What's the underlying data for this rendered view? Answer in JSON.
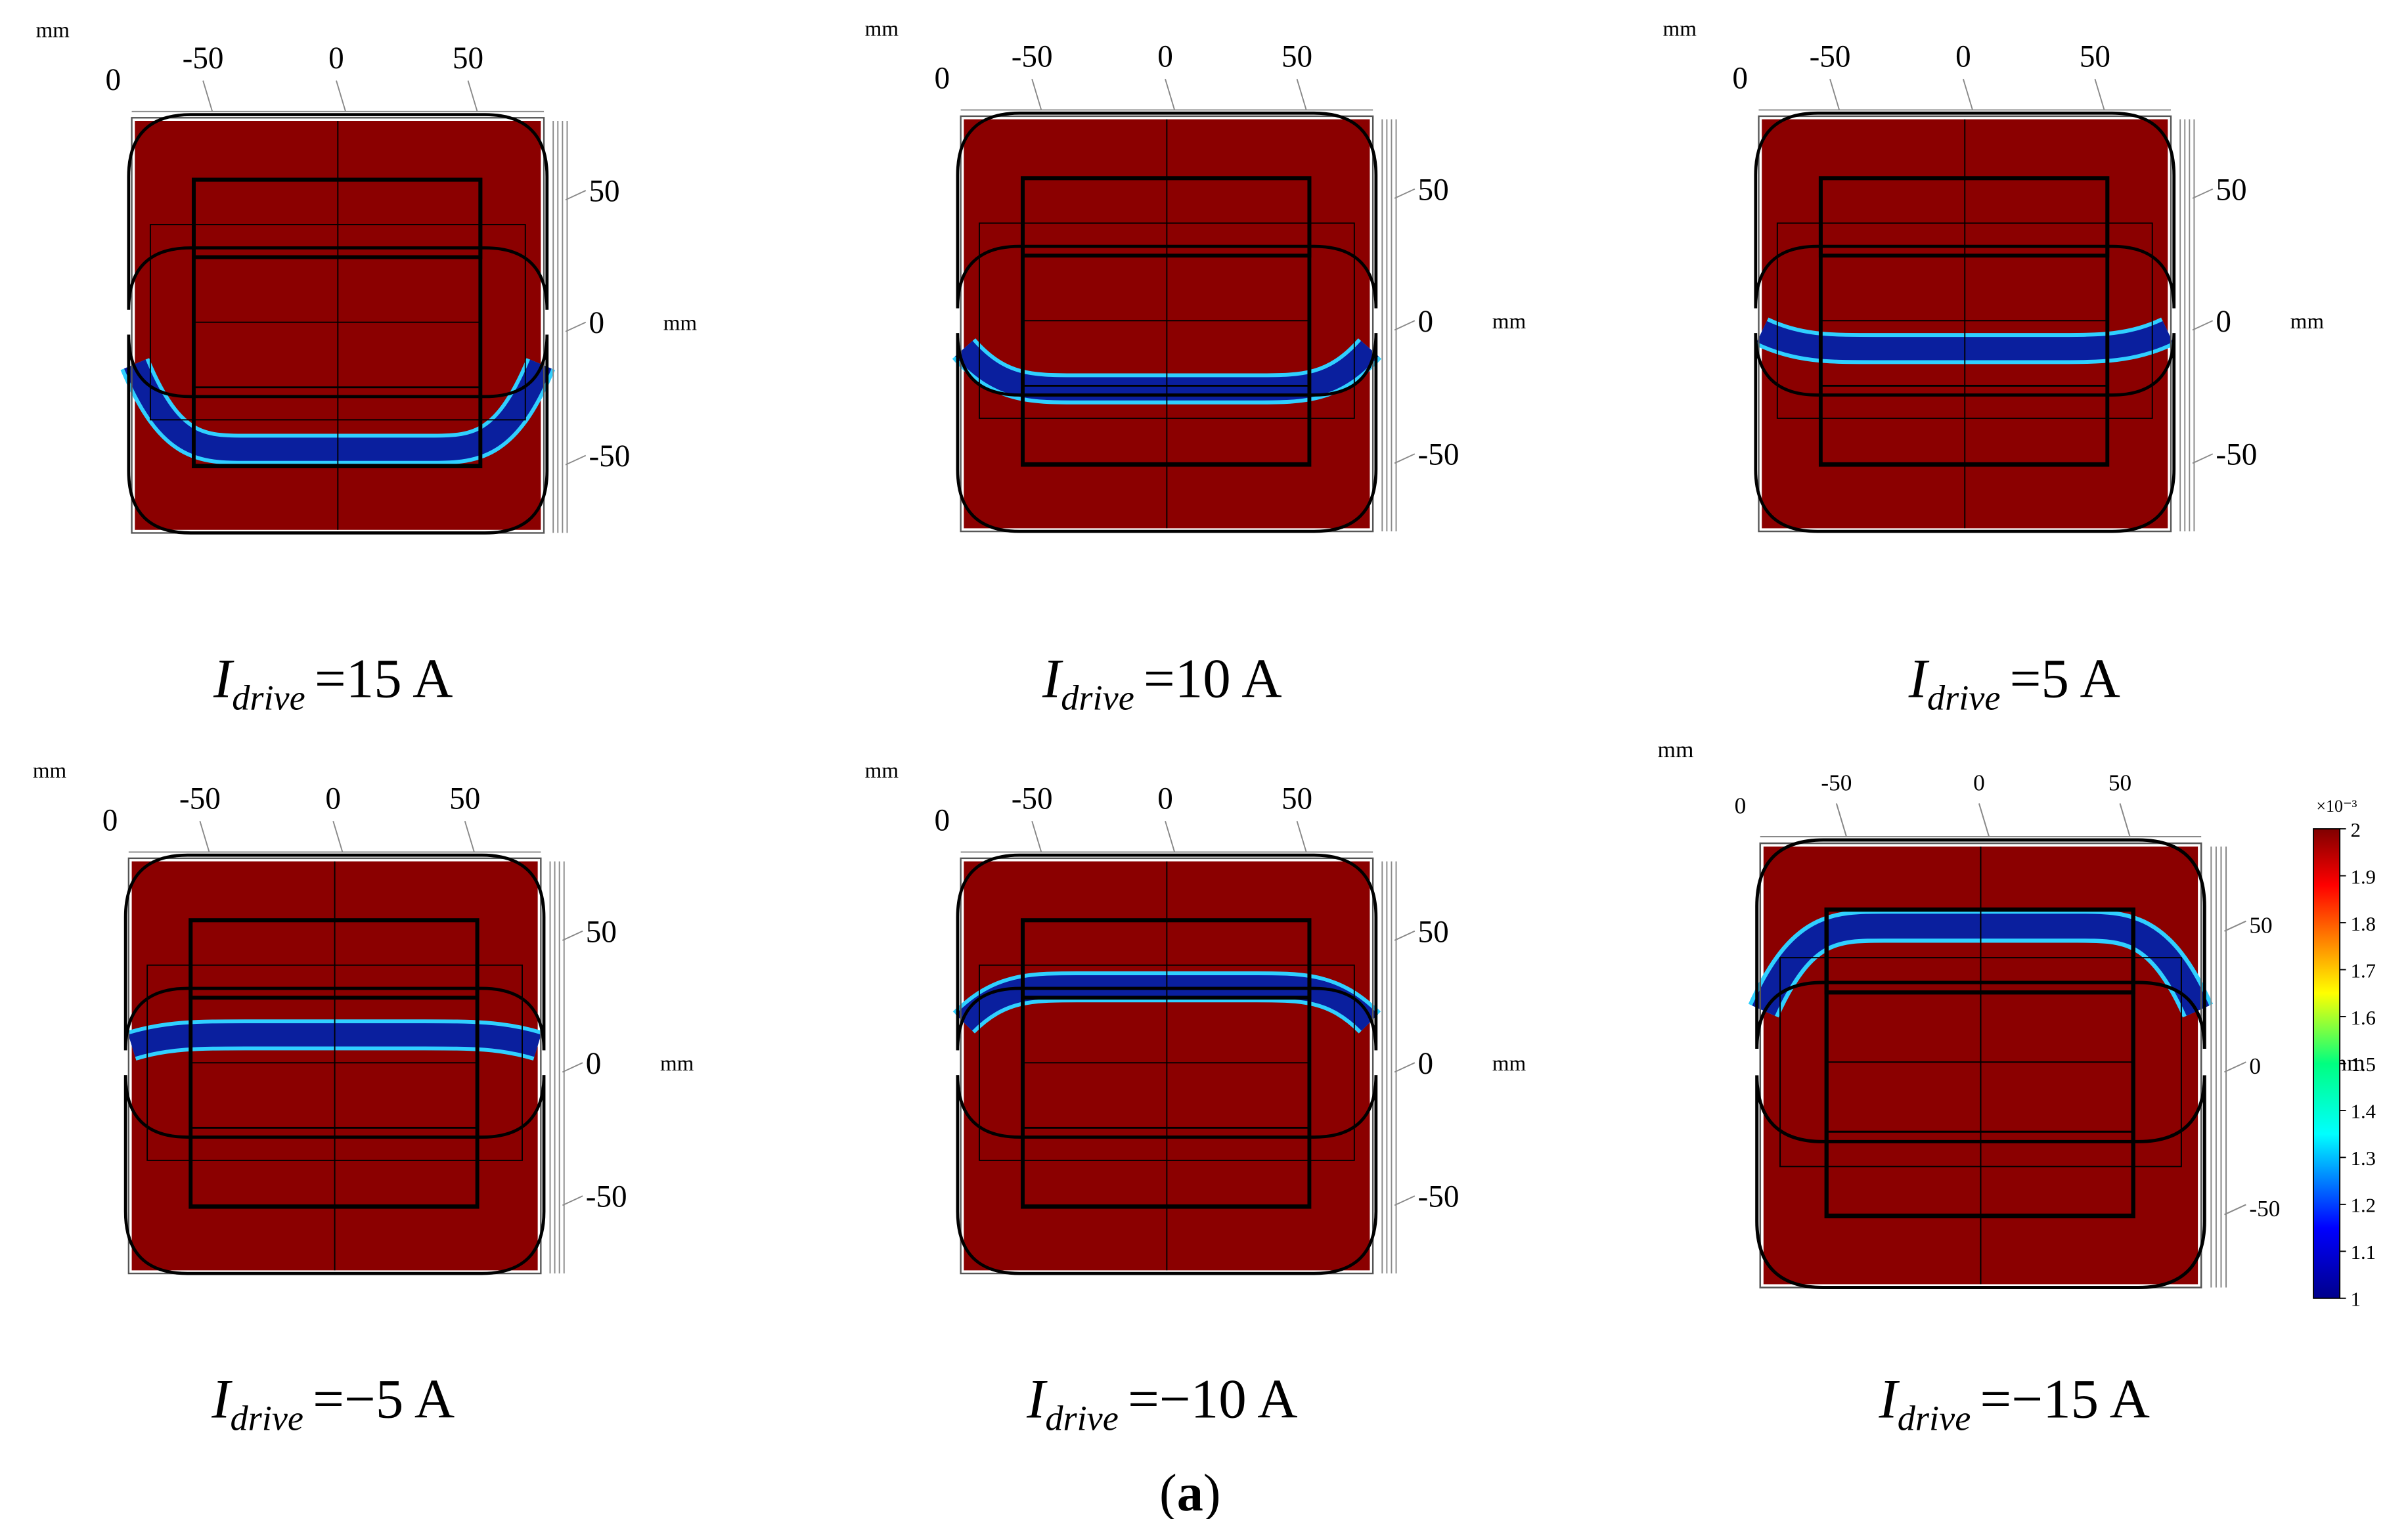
{
  "panels": [
    {
      "x_unit": "mm",
      "y_unit": "mm",
      "corner": "0",
      "xticks": [
        -50,
        0,
        50
      ],
      "yticks": [
        50,
        0,
        -50
      ],
      "caption": {
        "symbol": "I",
        "subscript": "drive",
        "value": "=15 A"
      }
    },
    {
      "x_unit": "mm",
      "y_unit": "mm",
      "corner": "0",
      "xticks": [
        -50,
        0,
        50
      ],
      "yticks": [
        50,
        0,
        -50
      ],
      "caption": {
        "symbol": "I",
        "subscript": "drive",
        "value": "=10 A"
      }
    },
    {
      "x_unit": "mm",
      "y_unit": "mm",
      "corner": "0",
      "xticks": [
        -50,
        0,
        50
      ],
      "yticks": [
        50,
        0,
        -50
      ],
      "caption": {
        "symbol": "I",
        "subscript": "drive",
        "value": "=5 A"
      }
    },
    {
      "x_unit": "mm",
      "y_unit": "mm",
      "corner": "0",
      "xticks": [
        -50,
        0,
        50
      ],
      "yticks": [
        50,
        0,
        -50
      ],
      "caption": {
        "symbol": "I",
        "subscript": "drive",
        "value": "=−5 A"
      }
    },
    {
      "x_unit": "mm",
      "y_unit": "mm",
      "corner": "0",
      "xticks": [
        -50,
        0,
        50
      ],
      "yticks": [
        50,
        0,
        -50
      ],
      "caption": {
        "symbol": "I",
        "subscript": "drive",
        "value": "=−10 A"
      }
    },
    {
      "x_unit": "mm",
      "y_unit": "mm",
      "corner": "0",
      "xticks": [
        -50,
        0,
        50
      ],
      "yticks": [
        50,
        0,
        -50
      ],
      "caption": {
        "symbol": "I",
        "subscript": "drive",
        "value": "=−15 A"
      }
    }
  ],
  "colorbar": {
    "exponent": "×10⁻³",
    "ticks": [
      2,
      1.9,
      1.8,
      1.7,
      1.6,
      1.5,
      1.4,
      1.3,
      1.2,
      1.1,
      1
    ]
  },
  "figure_label": {
    "open": "(",
    "letter": "a",
    "close": ")"
  }
}
